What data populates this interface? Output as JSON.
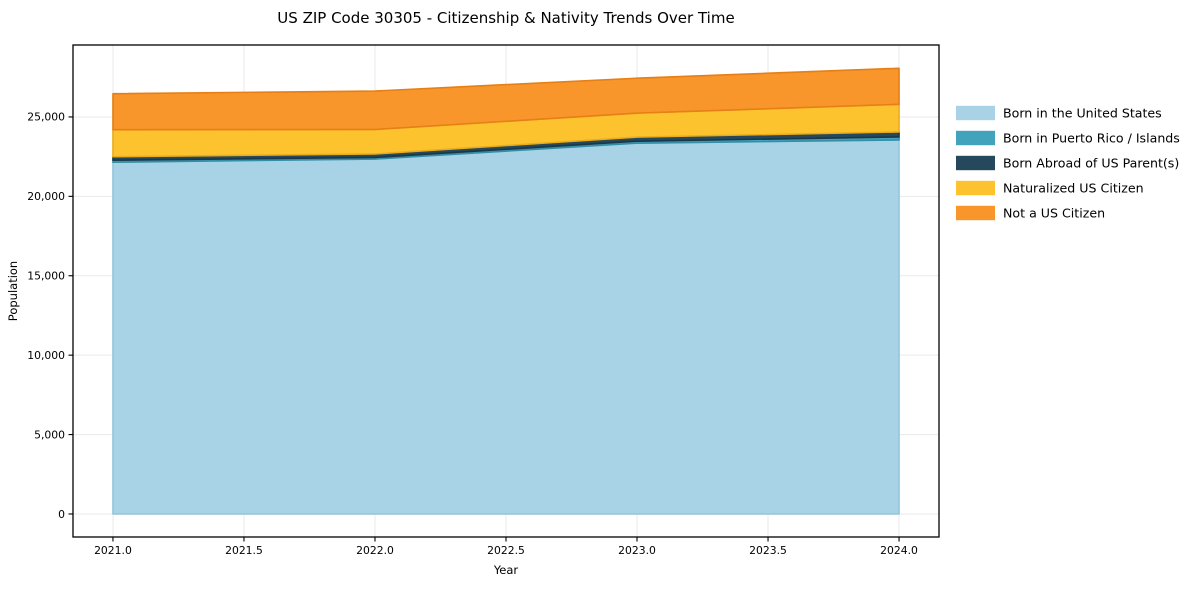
{
  "figure": {
    "title": "US ZIP Code 30305 - Citizenship & Nativity Trends Over Time"
  },
  "chart_data": {
    "type": "area",
    "stacked": true,
    "title": "US ZIP Code 30305 - Citizenship & Nativity Trends Over Time",
    "xlabel": "Year",
    "ylabel": "Population",
    "x": [
      2021,
      2022,
      2023,
      2024
    ],
    "series": [
      {
        "name": "Born in the United States",
        "color": "#a8d3e6",
        "edge": "#94c6dc",
        "values": [
          22150,
          22350,
          23350,
          23550
        ]
      },
      {
        "name": "Born in Puerto Rico / Islands",
        "color": "#42a3bd",
        "edge": "#338ea7",
        "values": [
          125,
          100,
          125,
          190
        ]
      },
      {
        "name": "Born Abroad of US Parent(s)",
        "color": "#26485c",
        "edge": "#1b3747",
        "values": [
          220,
          220,
          255,
          315
        ]
      },
      {
        "name": "Naturalized US Citizen",
        "color": "#fdc32f",
        "edge": "#e9ad1c",
        "values": [
          1700,
          1540,
          1510,
          1740
        ]
      },
      {
        "name": "Not a US Citizen",
        "color": "#f8952b",
        "edge": "#e57f16",
        "values": [
          2270,
          2420,
          2200,
          2270
        ]
      }
    ],
    "xticks": [
      2021.0,
      2021.5,
      2022.0,
      2022.5,
      2023.0,
      2023.5,
      2024.0
    ],
    "xtick_labels": [
      "2021.0",
      "2021.5",
      "2022.0",
      "2022.5",
      "2023.0",
      "2023.5",
      "2024.0"
    ],
    "yticks": [
      0,
      5000,
      10000,
      15000,
      20000,
      25000
    ],
    "ytick_labels": [
      "0",
      "5,000",
      "10,000",
      "15,000",
      "20,000",
      "25,000"
    ],
    "xlim": [
      2020.8475,
      2024.1525
    ],
    "ylim": [
      -1450,
      29530
    ],
    "grid": true,
    "grid_color": "#e9e9e9",
    "legend_position": "right",
    "background": "#ffffff",
    "spine_color": "#000000"
  }
}
